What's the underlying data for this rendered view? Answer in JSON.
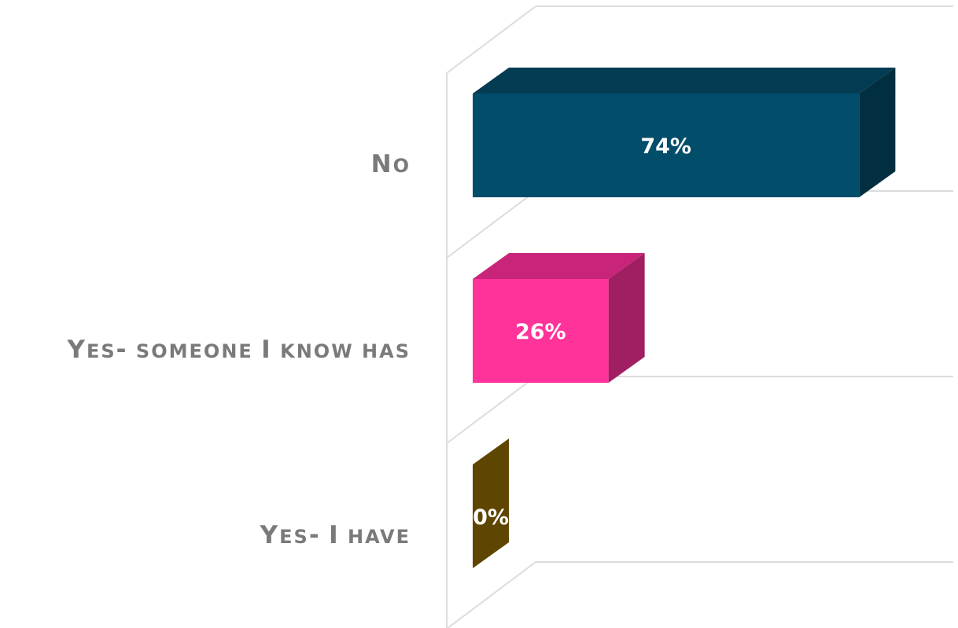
{
  "chart_data": {
    "type": "bar",
    "orientation": "horizontal",
    "style": "3d",
    "categories": [
      "No",
      "Yes- someone I know has",
      "Yes- I have"
    ],
    "values": [
      74,
      26,
      0
    ],
    "value_labels": [
      "74%",
      "26%",
      "0%"
    ],
    "xlim": [
      0,
      100
    ],
    "grid": true,
    "legend": "none",
    "colors": {
      "bar_front": [
        "#024d6a",
        "#ff3399",
        "#7a5a00"
      ],
      "bar_top": [
        "#033c52",
        "#c8257a",
        "#5e4500"
      ],
      "bar_side": [
        "#022f40",
        "#a01f62",
        "#5e4500"
      ],
      "grid": "#dcdcdc",
      "category_text": "#7a7a7a",
      "value_text": "#ffffff"
    }
  }
}
